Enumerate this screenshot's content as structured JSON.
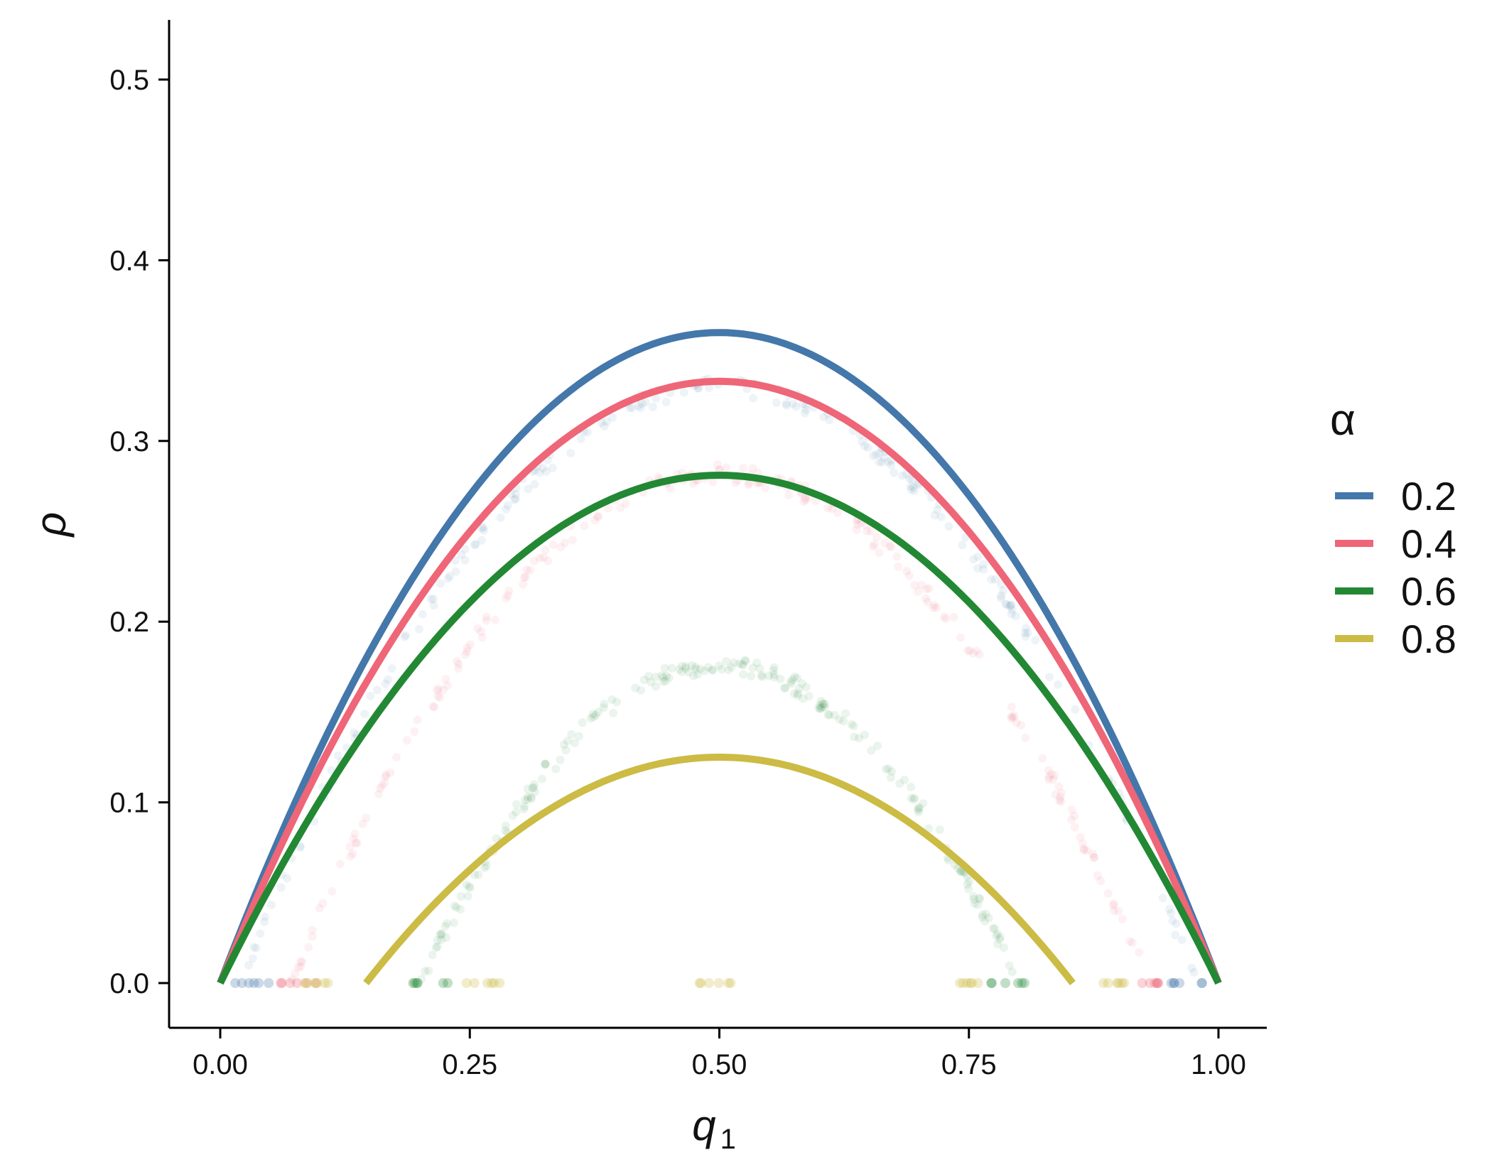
{
  "chart_data": {
    "type": "line",
    "xlabel_base": "q",
    "xlabel_sub": "1",
    "ylabel": "ρ",
    "xlim": [
      -0.1,
      1.05
    ],
    "ylim": [
      -0.025,
      0.535
    ],
    "x_ticks": [
      "0.00",
      "0.25",
      "0.50",
      "0.75",
      "1.00"
    ],
    "x_tick_values": [
      0,
      0.25,
      0.5,
      0.75,
      1.0
    ],
    "y_ticks": [
      "0.0",
      "0.1",
      "0.2",
      "0.3",
      "0.4",
      "0.5"
    ],
    "y_tick_values": [
      0,
      0.1,
      0.2,
      0.3,
      0.4,
      0.5
    ],
    "grid": false,
    "legend": {
      "title": "α",
      "position": "right"
    },
    "series": [
      {
        "name": "0.2",
        "color": "#4477AA",
        "curve_peak": 0.36,
        "curve_domain": [
          0.0,
          1.0
        ],
        "scatter_peak": 0.33,
        "scatter_domain": [
          0.02,
          0.98
        ]
      },
      {
        "name": "0.4",
        "color": "#EE6677",
        "curve_peak": 0.333,
        "curve_domain": [
          0.0,
          1.0
        ],
        "scatter_peak": 0.282,
        "scatter_domain": [
          0.07,
          0.93
        ]
      },
      {
        "name": "0.6",
        "color": "#228833",
        "curve_peak": 0.281,
        "curve_domain": [
          0.0,
          1.0
        ],
        "scatter_peak": 0.176,
        "scatter_domain": [
          0.2,
          0.8
        ]
      },
      {
        "name": "0.8",
        "color": "#CCBB44",
        "curve_peak": 0.125,
        "curve_domain": [
          0.146,
          0.854
        ],
        "scatter_peak": 0.0,
        "scatter_domain": [
          0.25,
          0.75
        ]
      }
    ]
  }
}
